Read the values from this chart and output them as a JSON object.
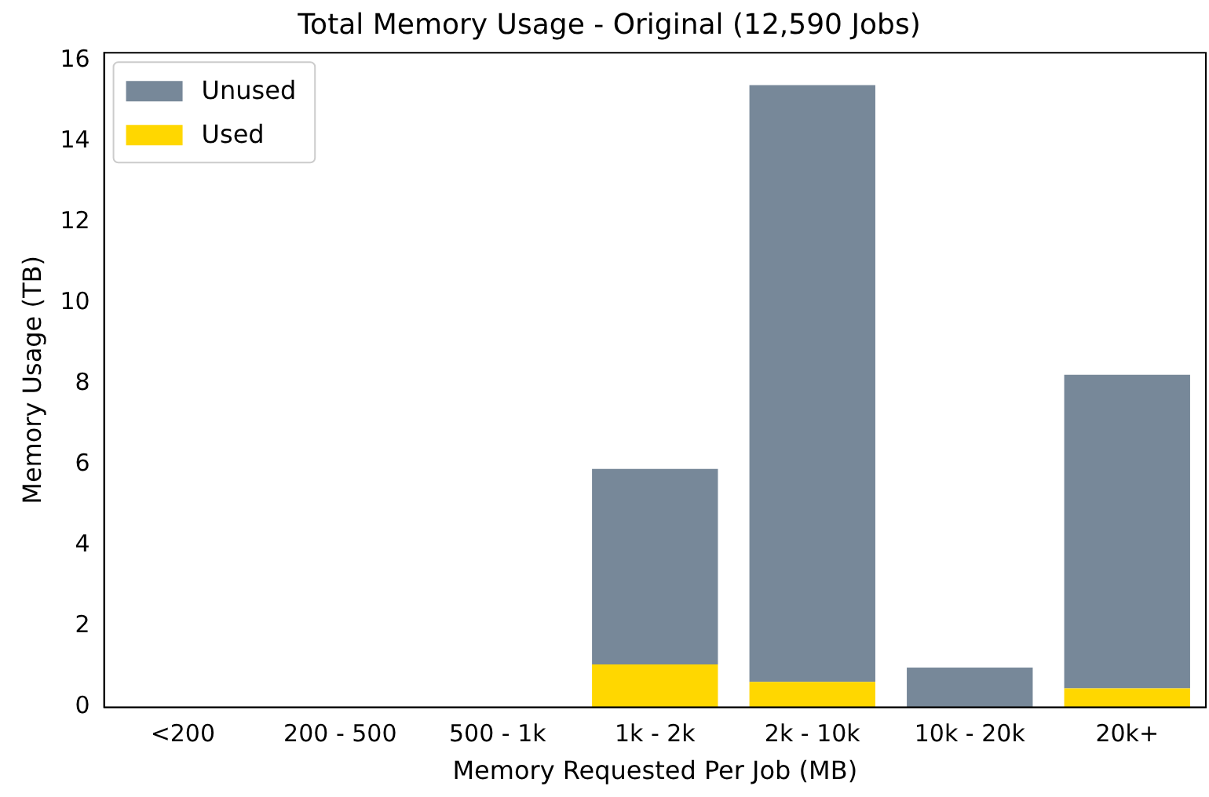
{
  "chart_data": {
    "type": "bar",
    "title": "Total Memory Usage - Original (12,590 Jobs)",
    "xlabel": "Memory Requested Per Job (MB)",
    "ylabel": "Memory Usage (TB)",
    "categories": [
      "<200",
      "200 - 500",
      "500 - 1k",
      "1k - 2k",
      "2k - 10k",
      "10k - 20k",
      "20k+"
    ],
    "stacked": true,
    "series": [
      {
        "name": "Used",
        "color": "#ffd700",
        "values": [
          0,
          0,
          0,
          1.06,
          0.63,
          0,
          0.47
        ]
      },
      {
        "name": "Unused",
        "color": "#778899",
        "values": [
          0,
          0,
          0,
          4.84,
          14.77,
          0.98,
          7.76
        ]
      }
    ],
    "ylim": [
      0,
      16.2
    ],
    "yticks": [
      0,
      2,
      4,
      6,
      8,
      10,
      12,
      14,
      16
    ],
    "grid": false,
    "legend": "top left"
  }
}
